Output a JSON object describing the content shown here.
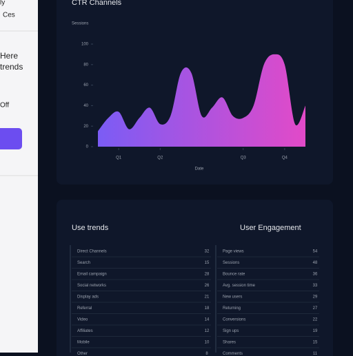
{
  "sidebar": {
    "items": [
      "ly",
      "Ces",
      "Here",
      "trends",
      "Off"
    ]
  },
  "chart_data": {
    "type": "area",
    "title": "CTR Channels",
    "y_label": "Sessions",
    "x_label": "Date",
    "x": [
      0,
      0.5,
      1,
      1.5,
      2,
      2.5,
      3,
      3.5,
      4,
      4.5,
      5,
      5.5,
      6,
      6.5,
      7,
      7.5,
      8,
      8.5,
      9,
      9.5,
      10
    ],
    "series": [
      {
        "name": "Sessions",
        "color": "#7b5cf5",
        "color_end": "#e24ac8",
        "values": [
          15,
          28,
          34,
          17,
          28,
          38,
          22,
          30,
          72,
          72,
          30,
          38,
          48,
          30,
          28,
          40,
          80,
          90,
          80,
          22,
          40
        ]
      }
    ],
    "xlim": [
      0,
      10
    ],
    "xticks": [
      {
        "value": 1,
        "label": "Q1"
      },
      {
        "value": 3,
        "label": "Q2"
      },
      {
        "value": 7,
        "label": "Q3"
      },
      {
        "value": 9,
        "label": "Q4"
      }
    ],
    "ylim": [
      0,
      100
    ],
    "yticks": [
      0,
      20,
      40,
      60,
      80,
      100
    ]
  },
  "lists": [
    {
      "title": "Use trends",
      "rows": [
        [
          "Direct Channels",
          "32"
        ],
        [
          "Search",
          "15"
        ],
        [
          "Email campaign",
          "28"
        ],
        [
          "Social networks",
          "26"
        ],
        [
          "Display ads",
          "21"
        ],
        [
          "Referral",
          "18"
        ],
        [
          "Video",
          "14"
        ],
        [
          "Affiliates",
          "12"
        ],
        [
          "Mobile",
          "10"
        ],
        [
          "Other",
          "8"
        ]
      ]
    },
    {
      "title": "User Engagement",
      "rows": [
        [
          "Page views",
          "54"
        ],
        [
          "Sessions",
          "48"
        ],
        [
          "Bounce rate",
          "36"
        ],
        [
          "Avg. session time",
          "33"
        ],
        [
          "New users",
          "29"
        ],
        [
          "Returning",
          "27"
        ],
        [
          "Conversions",
          "22"
        ],
        [
          "Sign ups",
          "19"
        ],
        [
          "Shares",
          "15"
        ],
        [
          "Comments",
          "11"
        ]
      ]
    }
  ]
}
